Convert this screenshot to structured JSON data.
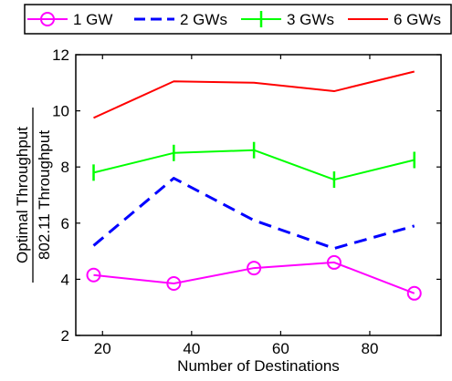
{
  "chart_data": {
    "type": "line",
    "x": [
      18,
      36,
      54,
      72,
      90
    ],
    "series": [
      {
        "name": "1 GW",
        "values": [
          4.15,
          3.85,
          4.4,
          4.6,
          3.5
        ],
        "color": "#ff00ff",
        "dash": "solid",
        "marker": "circle"
      },
      {
        "name": "2 GWs",
        "values": [
          5.2,
          7.6,
          6.1,
          5.1,
          5.9
        ],
        "color": "#0000ff",
        "dash": "dashed",
        "marker": "none"
      },
      {
        "name": "3 GWs",
        "values": [
          7.8,
          8.5,
          8.6,
          7.55,
          8.25
        ],
        "color": "#00ff00",
        "dash": "solid",
        "marker": "vbar"
      },
      {
        "name": "6 GWs",
        "values": [
          9.75,
          11.05,
          11.0,
          10.7,
          11.4
        ],
        "color": "#ff0000",
        "dash": "solid",
        "marker": "none"
      }
    ],
    "xlim": [
      14,
      96
    ],
    "ylim": [
      2,
      12
    ],
    "xticks": [
      20,
      40,
      60,
      80
    ],
    "yticks": [
      2,
      4,
      6,
      8,
      10,
      12
    ],
    "xlabel": "Number of Destinations",
    "ylabel_numerator": "Optimal Throughput",
    "ylabel_denominator": "802.11 Throughput",
    "grid": false,
    "legend_position": "top"
  }
}
